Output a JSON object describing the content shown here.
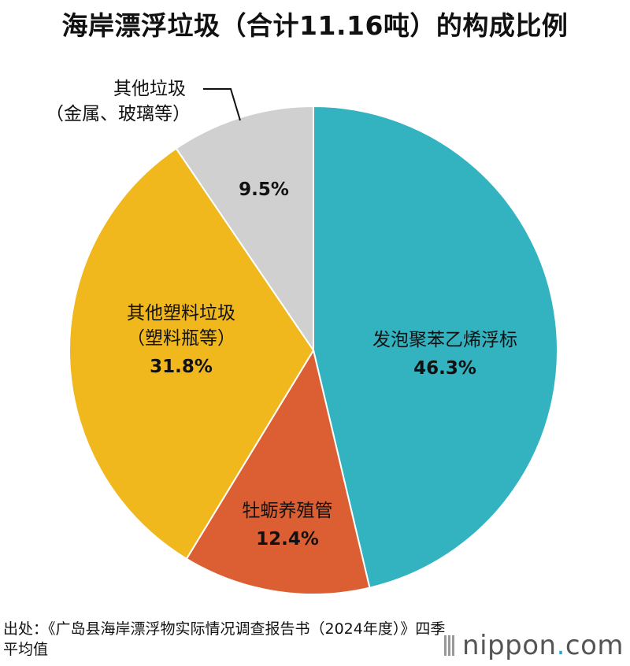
{
  "header": {
    "title": "海岸漂浮垃圾（合计11.16吨）的构成比例"
  },
  "chart_data": {
    "type": "pie",
    "title": "海岸漂浮垃圾（合计11.16吨）的构成比例",
    "start_angle_deg": 0,
    "direction": "clockwise",
    "slices": [
      {
        "label_lines": [
          "发泡聚苯乙烯浮标"
        ],
        "value": 46.3,
        "value_label": "46.3%",
        "color": "#33b2c0"
      },
      {
        "label_lines": [
          "牡蛎养殖管"
        ],
        "value": 12.4,
        "value_label": "12.4%",
        "color": "#dc5f33"
      },
      {
        "label_lines": [
          "其他塑料垃圾",
          "（塑料瓶等）"
        ],
        "value": 31.8,
        "value_label": "31.8%",
        "color": "#f0b81c"
      },
      {
        "label_lines": [
          "其他垃圾",
          "（金属、玻璃等）"
        ],
        "value": 9.5,
        "value_label": "9.5%",
        "color": "#d0d0d0"
      }
    ],
    "legend": "none"
  },
  "footer": {
    "source": "出处：《广岛县海岸漂浮物实际情况调查报告书（2024年度）》四季平均值",
    "logo_main": "nippon",
    "logo_dot": ".",
    "logo_tail": "com"
  }
}
